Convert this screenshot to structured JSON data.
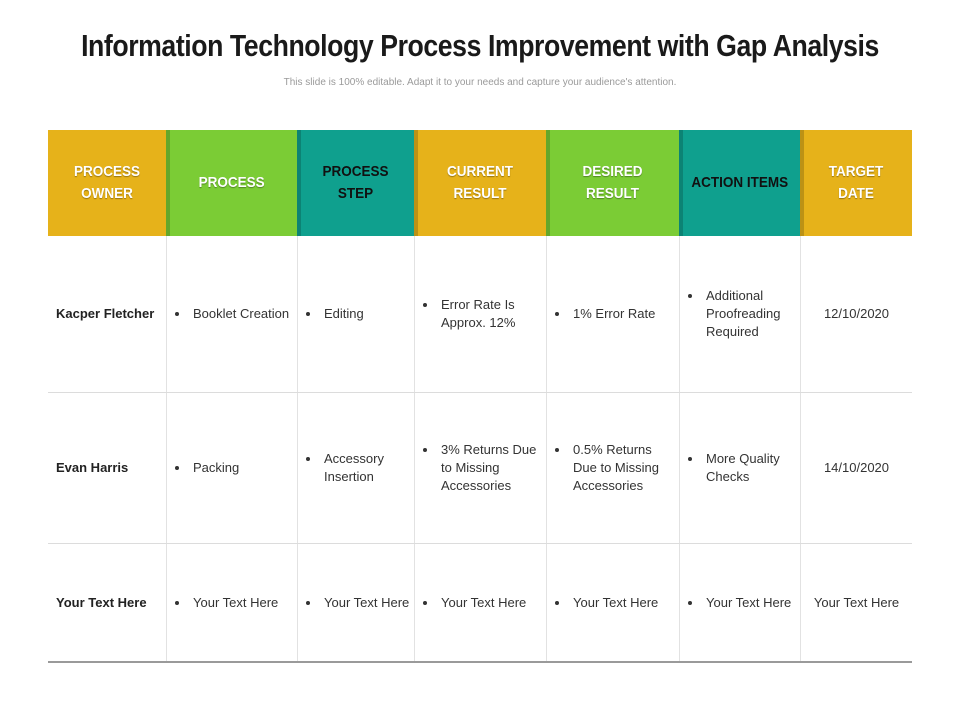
{
  "slide": {
    "title": "Information Technology Process Improvement with Gap Analysis",
    "subtitle": "This slide is 100% editable. Adapt it to your needs and capture your audience's attention."
  },
  "table": {
    "headers": [
      {
        "label": "PROCESS OWNER",
        "color": "#E6B21A"
      },
      {
        "label": "PROCESS",
        "color": "#7BCC35"
      },
      {
        "label": "PROCESS STEP",
        "color": "#0FA08E"
      },
      {
        "label": "CURRENT RESULT",
        "color": "#E6B21A"
      },
      {
        "label": "DESIRED RESULT",
        "color": "#7BCC35"
      },
      {
        "label": "ACTION ITEMS",
        "color": "#0FA08E"
      },
      {
        "label": "TARGET DATE",
        "color": "#E6B21A"
      }
    ],
    "rows": [
      {
        "owner": "Kacper Fletcher",
        "process": "Booklet Creation",
        "step": "Editing",
        "current": "Error Rate Is Approx. 12%",
        "desired": "1% Error Rate",
        "action": "Additional Proofreading Required",
        "date": "12/10/2020"
      },
      {
        "owner": "Evan Harris",
        "process": "Packing",
        "step": "Accessory Insertion",
        "current": "3% Returns Due to Missing Accessories",
        "desired": "0.5% Returns Due to Missing Accessories",
        "action": "More Quality Checks",
        "date": "14/10/2020"
      },
      {
        "owner": "Your Text Here",
        "process": "Your Text Here",
        "step": "Your Text Here",
        "current": "Your Text Here",
        "desired": "Your Text Here",
        "action": "Your Text Here",
        "date": "Your Text Here"
      }
    ]
  }
}
